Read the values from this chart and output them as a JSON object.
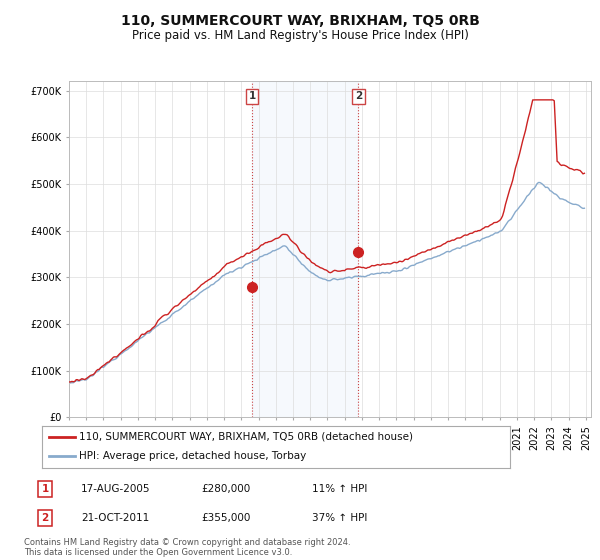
{
  "title": "110, SUMMERCOURT WAY, BRIXHAM, TQ5 0RB",
  "subtitle": "Price paid vs. HM Land Registry's House Price Index (HPI)",
  "ylim": [
    0,
    720000
  ],
  "yticks": [
    0,
    100000,
    200000,
    300000,
    400000,
    500000,
    600000,
    700000
  ],
  "ytick_labels": [
    "£0",
    "£100K",
    "£200K",
    "£300K",
    "£400K",
    "£500K",
    "£600K",
    "£700K"
  ],
  "hpi_color": "#88aacc",
  "price_color": "#cc2222",
  "background_color": "#ffffff",
  "grid_color": "#dddddd",
  "legend_entries": [
    "110, SUMMERCOURT WAY, BRIXHAM, TQ5 0RB (detached house)",
    "HPI: Average price, detached house, Torbay"
  ],
  "sale1_label": "1",
  "sale1_date": "17-AUG-2005",
  "sale1_price": "£280,000",
  "sale1_hpi": "11% ↑ HPI",
  "sale1_year": 2005.625,
  "sale1_value": 280000,
  "sale2_label": "2",
  "sale2_date": "21-OCT-2011",
  "sale2_price": "£355,000",
  "sale2_hpi": "37% ↑ HPI",
  "sale2_year": 2011.8,
  "sale2_value": 355000,
  "footer": "Contains HM Land Registry data © Crown copyright and database right 2024.\nThis data is licensed under the Open Government Licence v3.0.",
  "title_fontsize": 10,
  "subtitle_fontsize": 8.5,
  "tick_fontsize": 7
}
